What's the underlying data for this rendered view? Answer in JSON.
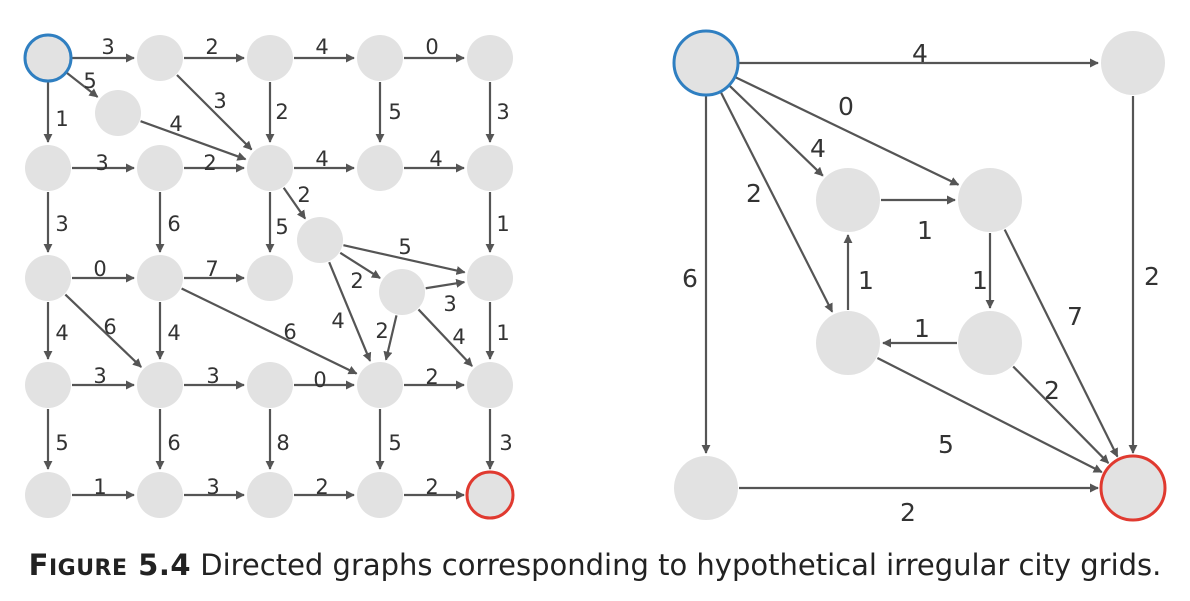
{
  "caption": {
    "label_first": "F",
    "label_rest": "IGURE",
    "number": "5.4",
    "text": "Directed graphs corresponding to hypothetical irregular city grids."
  },
  "colors": {
    "node": "#e2e2e2",
    "start": "#2f7fc1",
    "end": "#e03a30",
    "edge": "#555555"
  },
  "graphs": [
    {
      "name": "left-graph",
      "nodes": [
        "s",
        "g12",
        "g13",
        "g14",
        "g15",
        "g1a",
        "g21",
        "g22",
        "g23",
        "g24",
        "g25",
        "g2a",
        "g2b",
        "g31",
        "g32",
        "g33",
        "g35",
        "g41",
        "g42",
        "g43",
        "g44",
        "g45",
        "g51",
        "g52",
        "g53",
        "g54",
        "t"
      ],
      "edges": [
        {
          "from": "s",
          "to": "g12",
          "w": "3"
        },
        {
          "from": "g12",
          "to": "g13",
          "w": "2"
        },
        {
          "from": "g13",
          "to": "g14",
          "w": "4"
        },
        {
          "from": "g14",
          "to": "g15",
          "w": "0"
        },
        {
          "from": "s",
          "to": "g1a",
          "w": "5"
        },
        {
          "from": "s",
          "to": "g21",
          "w": "1"
        },
        {
          "from": "g12",
          "to": "g23",
          "w": "3"
        },
        {
          "from": "g1a",
          "to": "g23",
          "w": "4"
        },
        {
          "from": "g13",
          "to": "g23",
          "w": "2"
        },
        {
          "from": "g14",
          "to": "g24",
          "w": "5"
        },
        {
          "from": "g15",
          "to": "g25",
          "w": "3"
        },
        {
          "from": "g21",
          "to": "g22",
          "w": "3"
        },
        {
          "from": "g22",
          "to": "g23",
          "w": "2"
        },
        {
          "from": "g23",
          "to": "g24",
          "w": "4"
        },
        {
          "from": "g24",
          "to": "g25",
          "w": "4"
        },
        {
          "from": "g21",
          "to": "g31",
          "w": "3"
        },
        {
          "from": "g22",
          "to": "g32",
          "w": "6"
        },
        {
          "from": "g23",
          "to": "g33",
          "w": "5"
        },
        {
          "from": "g23",
          "to": "g2a",
          "w": "2"
        },
        {
          "from": "g25",
          "to": "g35",
          "w": "1"
        },
        {
          "from": "g2a",
          "to": "g35",
          "w": "5"
        },
        {
          "from": "g2a",
          "to": "g2b",
          "w": "2"
        },
        {
          "from": "g2b",
          "to": "g35",
          "w": "3"
        },
        {
          "from": "g31",
          "to": "g32",
          "w": "0"
        },
        {
          "from": "g32",
          "to": "g33",
          "w": "7"
        },
        {
          "from": "g31",
          "to": "g41",
          "w": "4"
        },
        {
          "from": "g31",
          "to": "g42",
          "w": "6"
        },
        {
          "from": "g32",
          "to": "g42",
          "w": "4"
        },
        {
          "from": "g32",
          "to": "g44",
          "w": "6"
        },
        {
          "from": "g2a",
          "to": "g44",
          "w": "4"
        },
        {
          "from": "g2b",
          "to": "g44",
          "w": "2"
        },
        {
          "from": "g2b",
          "to": "g45",
          "w": "4"
        },
        {
          "from": "g35",
          "to": "g45",
          "w": "1"
        },
        {
          "from": "g41",
          "to": "g42",
          "w": "3"
        },
        {
          "from": "g42",
          "to": "g43",
          "w": "3"
        },
        {
          "from": "g43",
          "to": "g44",
          "w": "0"
        },
        {
          "from": "g44",
          "to": "g45",
          "w": "2"
        },
        {
          "from": "g41",
          "to": "g51",
          "w": "5"
        },
        {
          "from": "g42",
          "to": "g52",
          "w": "6"
        },
        {
          "from": "g43",
          "to": "g53",
          "w": "8"
        },
        {
          "from": "g44",
          "to": "g54",
          "w": "5"
        },
        {
          "from": "g45",
          "to": "t",
          "w": "3"
        },
        {
          "from": "g51",
          "to": "g52",
          "w": "1"
        },
        {
          "from": "g52",
          "to": "g53",
          "w": "3"
        },
        {
          "from": "g53",
          "to": "g54",
          "w": "2"
        },
        {
          "from": "g54",
          "to": "t",
          "w": "2"
        }
      ]
    },
    {
      "name": "right-graph",
      "nodes": [
        "s",
        "tr",
        "a",
        "b",
        "c",
        "d",
        "bl",
        "t"
      ],
      "edges": [
        {
          "from": "s",
          "to": "tr",
          "w": "4"
        },
        {
          "from": "s",
          "to": "b",
          "w": "0"
        },
        {
          "from": "s",
          "to": "a",
          "w": "4"
        },
        {
          "from": "s",
          "to": "c",
          "w": "2"
        },
        {
          "from": "s",
          "to": "bl",
          "w": "6"
        },
        {
          "from": "a",
          "to": "b",
          "w": "1"
        },
        {
          "from": "c",
          "to": "a",
          "w": "1"
        },
        {
          "from": "b",
          "to": "d",
          "w": "1"
        },
        {
          "from": "d",
          "to": "c",
          "w": "1"
        },
        {
          "from": "b",
          "to": "t",
          "w": "7"
        },
        {
          "from": "tr",
          "to": "t",
          "w": "2"
        },
        {
          "from": "d",
          "to": "t",
          "w": "2"
        },
        {
          "from": "c",
          "to": "t",
          "w": "5"
        },
        {
          "from": "bl",
          "to": "t",
          "w": "2"
        }
      ]
    }
  ]
}
